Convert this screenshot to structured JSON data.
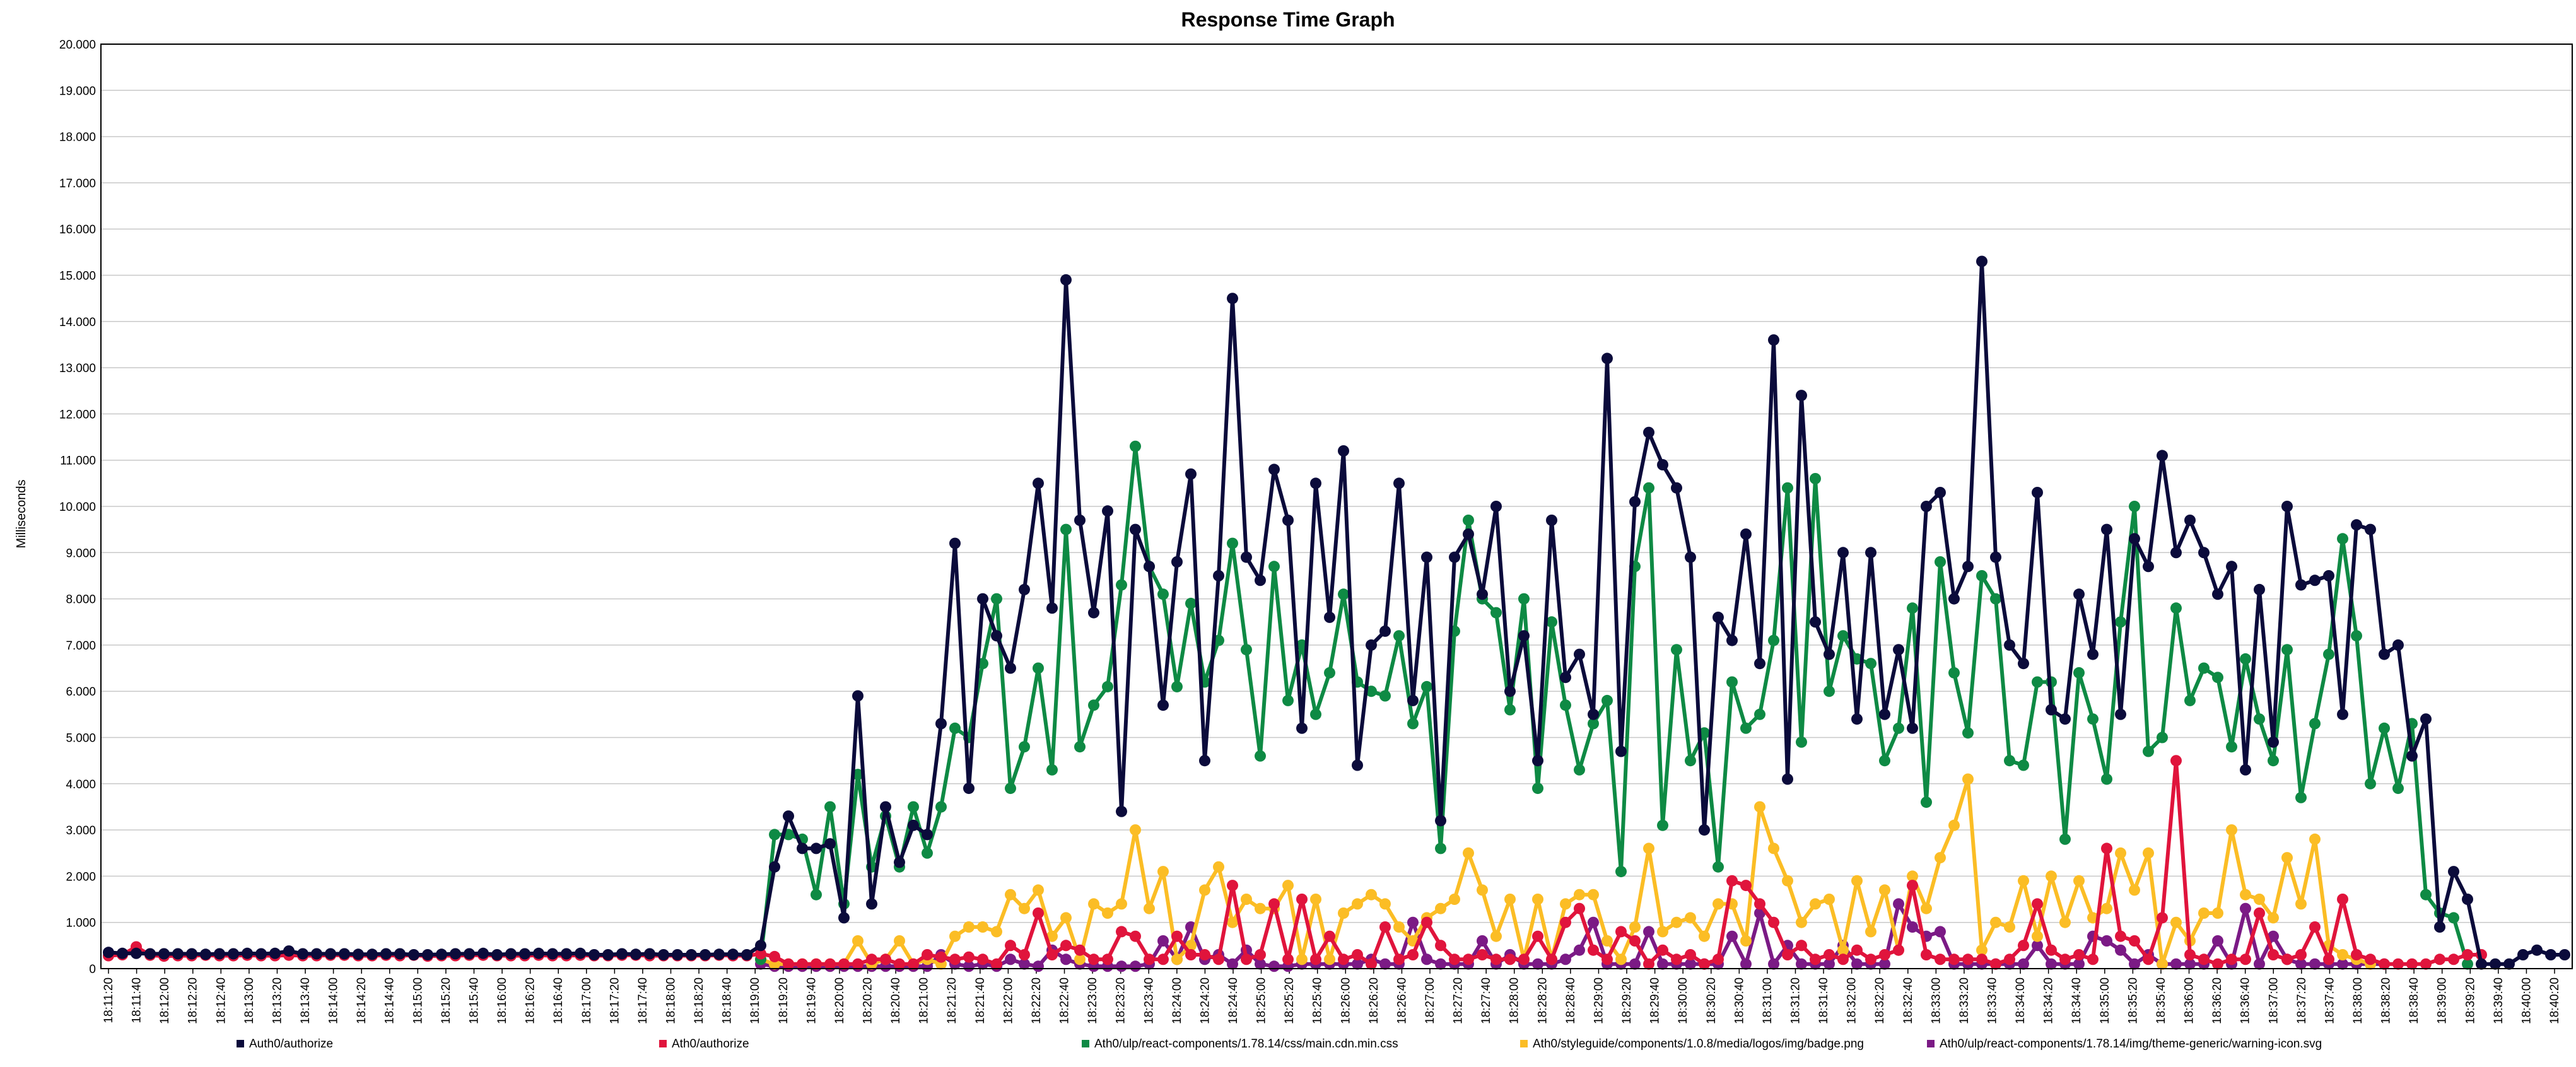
{
  "chart_data": {
    "type": "line",
    "title": "Response Time Graph",
    "xlabel": "",
    "ylabel": "Milliseconds",
    "ylim": [
      0,
      20000
    ],
    "grid": true,
    "legend_position": "bottom",
    "y_ticks": [
      "0",
      "1.000",
      "2.000",
      "3.000",
      "4.000",
      "5.000",
      "6.000",
      "7.000",
      "8.000",
      "9.000",
      "10.000",
      "11.000",
      "12.000",
      "13.000",
      "14.000",
      "15.000",
      "16.000",
      "17.000",
      "18.000",
      "19.000",
      "20.000"
    ],
    "x_ticks": [
      "18:11:20",
      "18:11:40",
      "18:12:00",
      "18:12:20",
      "18:12:40",
      "18:13:00",
      "18:13:20",
      "18:13:40",
      "18:14:00",
      "18:14:20",
      "18:14:40",
      "18:15:00",
      "18:15:20",
      "18:15:40",
      "18:16:00",
      "18:16:20",
      "18:16:40",
      "18:17:00",
      "18:17:20",
      "18:17:40",
      "18:18:00",
      "18:18:20",
      "18:18:40",
      "18:19:00",
      "18:19:20",
      "18:19:40",
      "18:20:00",
      "18:20:20",
      "18:20:40",
      "18:21:00",
      "18:21:20",
      "18:21:40",
      "18:22:00",
      "18:22:20",
      "18:22:40",
      "18:23:00",
      "18:23:20",
      "18:23:40",
      "18:24:00",
      "18:24:20",
      "18:24:40",
      "18:25:00",
      "18:25:20",
      "18:25:40",
      "18:26:00",
      "18:26:20",
      "18:26:40",
      "18:27:00",
      "18:27:20",
      "18:27:40",
      "18:28:00",
      "18:28:20",
      "18:28:40",
      "18:29:00",
      "18:29:20",
      "18:29:40",
      "18:30:00",
      "18:30:20",
      "18:30:40",
      "18:31:00",
      "18:31:20",
      "18:31:40",
      "18:32:00",
      "18:32:20",
      "18:32:40",
      "18:33:00",
      "18:33:20",
      "18:33:40",
      "18:34:00",
      "18:34:20",
      "18:34:40",
      "18:35:00",
      "18:35:20",
      "18:35:40",
      "18:36:00",
      "18:36:20",
      "18:36:40",
      "18:37:00",
      "18:37:20",
      "18:37:40",
      "18:38:00",
      "18:38:20",
      "18:38:40",
      "18:39:00",
      "18:39:20",
      "18:39:40",
      "18:40:00",
      "18:40:20"
    ],
    "series": [
      {
        "name": "Auth0/authorize",
        "color": "#0b0b3b",
        "values": [
          350,
          330,
          330,
          320,
          320,
          320,
          320,
          310,
          320,
          320,
          330,
          320,
          330,
          380,
          320,
          320,
          320,
          320,
          310,
          310,
          320,
          320,
          300,
          300,
          310,
          320,
          320,
          330,
          300,
          320,
          320,
          330,
          320,
          320,
          330,
          300,
          300,
          320,
          310,
          320,
          300,
          300,
          300,
          300,
          310,
          310,
          300,
          500,
          2200,
          3300,
          2600,
          2600,
          2700,
          1100,
          5900,
          1400,
          3500,
          2300,
          3100,
          2900,
          5300,
          9200,
          3900,
          8000,
          7200,
          6500,
          8200,
          10500,
          7800,
          14900,
          9700,
          7700,
          9900,
          3400,
          9500,
          8700,
          5700,
          8800,
          10700,
          4500,
          8500,
          14500,
          8900,
          8400,
          10800,
          9700,
          5200,
          10500,
          7600,
          11200,
          4400,
          7000,
          7300,
          10500,
          5800,
          8900,
          3200,
          8900,
          9400,
          8100,
          10000,
          6000,
          7200,
          4500,
          9700,
          6300,
          6800,
          5500,
          13200,
          4700,
          10100,
          11600,
          10900,
          10400,
          8900,
          3000,
          7600,
          7100,
          9400,
          6600,
          13600,
          4100,
          12400,
          7500,
          6800,
          9000,
          5400,
          9000,
          5500,
          6900,
          5200,
          10000,
          10300,
          8000,
          8700,
          15300,
          8900,
          7000,
          6600,
          10300,
          5600,
          5400,
          8100,
          6800,
          9500,
          5500,
          9300,
          8700,
          11100,
          9000,
          9700,
          9000,
          8100,
          8700,
          4300,
          8200,
          4900,
          10000,
          8300,
          8400,
          8500,
          5500,
          9600,
          9500,
          6800,
          7000,
          4600,
          5400,
          900,
          2100,
          1500,
          100,
          100,
          100,
          300,
          400,
          300,
          300
        ]
      },
      {
        "name": "Ath0/authorize",
        "color": "#e0143c",
        "values": [
          280,
          300,
          470,
          290,
          270,
          280,
          280,
          290,
          280,
          280,
          290,
          280,
          280,
          290,
          280,
          280,
          290,
          290,
          280,
          280,
          290,
          280,
          290,
          270,
          280,
          280,
          290,
          290,
          280,
          280,
          280,
          290,
          280,
          280,
          290,
          280,
          280,
          290,
          290,
          280,
          280,
          280,
          280,
          280,
          290,
          280,
          280,
          320,
          260,
          100,
          100,
          100,
          100,
          100,
          100,
          200,
          200,
          100,
          100,
          300,
          250,
          200,
          250,
          200,
          100,
          500,
          300,
          1200,
          300,
          500,
          400,
          200,
          200,
          800,
          700,
          200,
          200,
          700,
          300,
          300,
          200,
          1800,
          200,
          300,
          1400,
          200,
          1500,
          200,
          700,
          200,
          300,
          100,
          900,
          200,
          300,
          1000,
          500,
          200,
          200,
          300,
          200,
          200,
          200,
          700,
          200,
          1000,
          1300,
          400,
          200,
          800,
          600,
          100,
          400,
          200,
          300,
          100,
          200,
          1900,
          1800,
          1400,
          1000,
          300,
          500,
          200,
          300,
          200,
          400,
          200,
          300,
          400,
          1800,
          300,
          200,
          200,
          200,
          200,
          100,
          200,
          500,
          1400,
          400,
          200,
          300,
          200,
          2600,
          700,
          600,
          200,
          1100,
          4500,
          300,
          200,
          100,
          200,
          200,
          1200,
          300,
          200,
          300,
          900,
          200,
          1500,
          300,
          200,
          100,
          100,
          100,
          100,
          200,
          200,
          300,
          300
        ]
      },
      {
        "name": "Ath0/ulp/react-components/1.78.14/css/main.cdn.min.css",
        "color": "#0e8a44",
        "values": [
          null,
          null,
          null,
          null,
          null,
          null,
          null,
          null,
          null,
          null,
          null,
          null,
          null,
          null,
          null,
          null,
          null,
          null,
          null,
          null,
          null,
          null,
          null,
          null,
          null,
          null,
          null,
          null,
          null,
          null,
          null,
          null,
          null,
          null,
          null,
          null,
          null,
          null,
          null,
          null,
          null,
          null,
          null,
          null,
          null,
          null,
          null,
          200,
          2900,
          2900,
          2800,
          1600,
          3500,
          1400,
          4200,
          2200,
          3300,
          2200,
          3500,
          2500,
          3500,
          5200,
          5000,
          6600,
          8000,
          3900,
          4800,
          6500,
          4300,
          9500,
          4800,
          5700,
          6100,
          8300,
          11300,
          8700,
          8100,
          6100,
          7900,
          6200,
          7100,
          9200,
          6900,
          4600,
          8700,
          5800,
          7000,
          5500,
          6400,
          8100,
          6200,
          6000,
          5900,
          7200,
          5300,
          6100,
          2600,
          7300,
          9700,
          8000,
          7700,
          5600,
          8000,
          3900,
          7500,
          5700,
          4300,
          5300,
          5800,
          2100,
          8700,
          10400,
          3100,
          6900,
          4500,
          5100,
          2200,
          6200,
          5200,
          5500,
          7100,
          10400,
          4900,
          10600,
          6000,
          7200,
          6700,
          6600,
          4500,
          5200,
          7800,
          3600,
          8800,
          6400,
          5100,
          8500,
          8000,
          4500,
          4400,
          6200,
          6200,
          2800,
          6400,
          5400,
          4100,
          7500,
          10000,
          4700,
          5000,
          7800,
          5800,
          6500,
          6300,
          4800,
          6700,
          5400,
          4500,
          6900,
          3700,
          5300,
          6800,
          9300,
          7200,
          4000,
          5200,
          3900,
          5300,
          1600,
          1200,
          1100,
          100,
          null,
          null,
          null,
          null,
          null,
          null
        ]
      },
      {
        "name": "Ath0/styleguide/components/1.0.8/media/logos/img/badge.png",
        "color": "#fbbd25",
        "values": [
          null,
          null,
          null,
          null,
          null,
          null,
          null,
          null,
          null,
          null,
          null,
          null,
          null,
          null,
          null,
          null,
          null,
          null,
          null,
          null,
          null,
          null,
          null,
          null,
          null,
          null,
          null,
          null,
          null,
          null,
          null,
          null,
          null,
          null,
          null,
          null,
          null,
          null,
          null,
          null,
          null,
          null,
          null,
          null,
          null,
          null,
          null,
          200,
          100,
          100,
          100,
          100,
          100,
          100,
          600,
          100,
          200,
          600,
          100,
          200,
          100,
          700,
          900,
          900,
          800,
          1600,
          1300,
          1700,
          700,
          1100,
          200,
          1400,
          1200,
          1400,
          3000,
          1300,
          2100,
          200,
          500,
          1700,
          2200,
          1000,
          1500,
          1300,
          1300,
          1800,
          200,
          1500,
          200,
          1200,
          1400,
          1600,
          1400,
          900,
          600,
          1100,
          1300,
          1500,
          2500,
          1700,
          700,
          1500,
          200,
          1500,
          200,
          1400,
          1600,
          1600,
          600,
          200,
          900,
          2600,
          800,
          1000,
          1100,
          700,
          1400,
          1400,
          600,
          3500,
          2600,
          1900,
          1000,
          1400,
          1500,
          400,
          1900,
          800,
          1700,
          400,
          2000,
          1300,
          2400,
          3100,
          4100,
          400,
          1000,
          900,
          1900,
          700,
          2000,
          1000,
          1900,
          1100,
          1300,
          2500,
          1700,
          2500,
          100,
          1000,
          600,
          1200,
          1200,
          3000,
          1600,
          1500,
          1100,
          2400,
          1400,
          2800,
          500,
          300,
          200,
          100,
          null,
          null,
          null,
          null,
          null,
          null
        ]
      },
      {
        "name": "Ath0/ulp/react-components/1.78.14/img/theme-generic/warning-icon.svg",
        "color": "#7b1a85",
        "values": [
          null,
          null,
          null,
          null,
          null,
          null,
          null,
          null,
          null,
          null,
          null,
          null,
          null,
          null,
          null,
          null,
          null,
          null,
          null,
          null,
          null,
          null,
          null,
          null,
          null,
          null,
          null,
          null,
          null,
          null,
          null,
          null,
          null,
          null,
          null,
          null,
          null,
          null,
          null,
          null,
          null,
          null,
          null,
          null,
          null,
          null,
          null,
          100,
          50,
          50,
          50,
          50,
          50,
          50,
          50,
          50,
          50,
          50,
          50,
          50,
          300,
          100,
          50,
          100,
          50,
          200,
          100,
          50,
          400,
          200,
          100,
          50,
          50,
          50,
          50,
          100,
          600,
          200,
          900,
          200,
          300,
          100,
          400,
          100,
          50,
          50,
          100,
          100,
          100,
          100,
          100,
          200,
          100,
          100,
          1000,
          200,
          100,
          100,
          100,
          600,
          100,
          300,
          100,
          100,
          100,
          200,
          400,
          1000,
          100,
          100,
          100,
          800,
          100,
          100,
          100,
          100,
          100,
          700,
          100,
          1200,
          100,
          500,
          100,
          100,
          100,
          500,
          100,
          100,
          100,
          1400,
          900,
          700,
          800,
          100,
          100,
          100,
          100,
          100,
          100,
          500,
          100,
          100,
          100,
          700,
          600,
          400,
          100,
          300,
          100,
          100,
          100,
          100,
          600,
          100,
          1300,
          100,
          700,
          200,
          100,
          100,
          100,
          100,
          100,
          100,
          100,
          null,
          null,
          null,
          null,
          null,
          null
        ]
      }
    ]
  }
}
